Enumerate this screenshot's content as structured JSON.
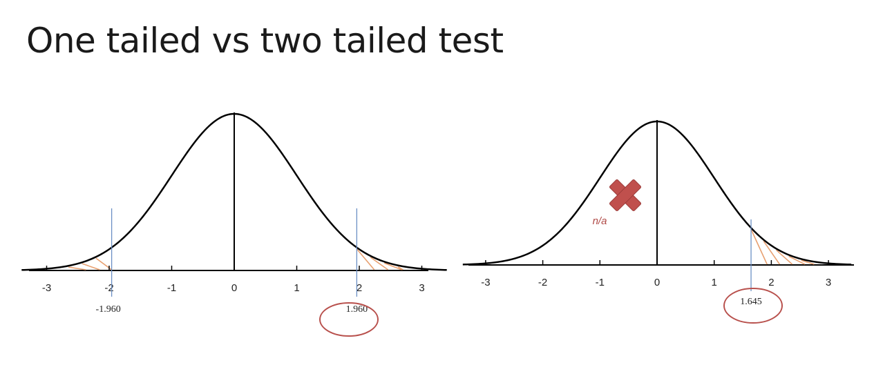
{
  "title": "One tailed vs two tailed test",
  "colors": {
    "curve": "#000000",
    "critical_line": "#6b8fc4",
    "hatch": "#e8a070",
    "circle": "#b8504c",
    "cross": "#c0504d"
  },
  "chart_data": [
    {
      "type": "line",
      "distribution": "standard normal",
      "title": "",
      "xlabel": "",
      "ylabel": "",
      "xlim": [
        -3.4,
        3.4
      ],
      "x_ticks": [
        -3,
        -2,
        -1,
        0,
        1,
        2,
        3
      ],
      "x_tick_labels": [
        "-3",
        "-2",
        "-1",
        "0",
        "1",
        "2",
        "3"
      ],
      "critical_values": [
        -1.96,
        1.96
      ],
      "critical_labels": [
        "-1.960",
        "1.960"
      ],
      "circled_label": "1.960",
      "shaded_tails": "both"
    },
    {
      "type": "line",
      "distribution": "standard normal",
      "title": "",
      "xlabel": "",
      "ylabel": "",
      "xlim": [
        -3.4,
        3.4
      ],
      "x_ticks": [
        -3,
        -2,
        -1,
        0,
        1,
        2,
        3
      ],
      "x_tick_labels": [
        "-3",
        "-2",
        "-1",
        "0",
        "1",
        "2",
        "3"
      ],
      "critical_values": [
        1.645
      ],
      "critical_labels": [
        "1.645"
      ],
      "circled_label": "1.645",
      "shaded_tails": "right",
      "annotation": "n/a",
      "annotation_icon": "cross-icon"
    }
  ]
}
